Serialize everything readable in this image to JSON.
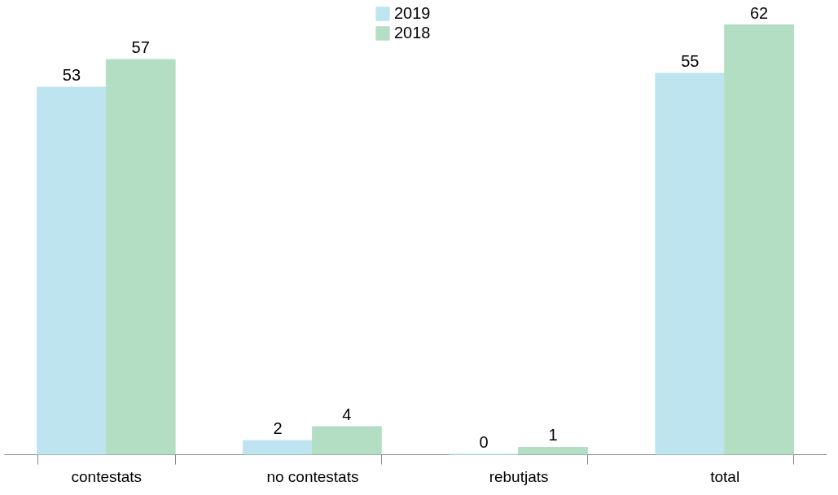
{
  "chart_data": {
    "type": "bar",
    "categories": [
      "contestats",
      "no contestats",
      "rebutjats",
      "total"
    ],
    "series": [
      {
        "name": "2019",
        "color": "#bee4f0",
        "values": [
          53,
          2,
          0,
          55
        ]
      },
      {
        "name": "2018",
        "color": "#b3dec4",
        "values": [
          57,
          4,
          1,
          62
        ]
      }
    ],
    "data_labels": true,
    "legend": "top",
    "grid": false
  }
}
